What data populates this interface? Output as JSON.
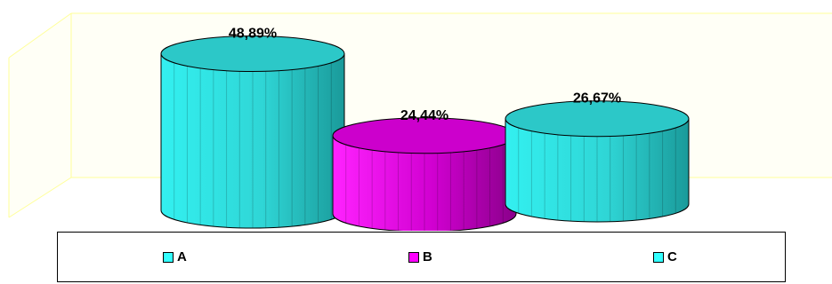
{
  "chart_data": {
    "type": "bar",
    "style": "3d-cylinder",
    "categories": [
      "A",
      "B",
      "C"
    ],
    "values": [
      48.89,
      24.44,
      26.67
    ],
    "value_labels": [
      "48,89%",
      "24,44%",
      "26,67%"
    ],
    "ylim": [
      0,
      50
    ],
    "grid": false,
    "legend_placement": "bottom",
    "colors": {
      "A": "#33FFFF",
      "B": "#FF00FF",
      "C": "#33FFFF"
    },
    "wall_color": "#FFFFE6"
  },
  "legend": {
    "items": [
      {
        "label": "A",
        "color": "#33FFFF"
      },
      {
        "label": "B",
        "color": "#FF00FF"
      },
      {
        "label": "C",
        "color": "#33FFFF"
      }
    ]
  }
}
